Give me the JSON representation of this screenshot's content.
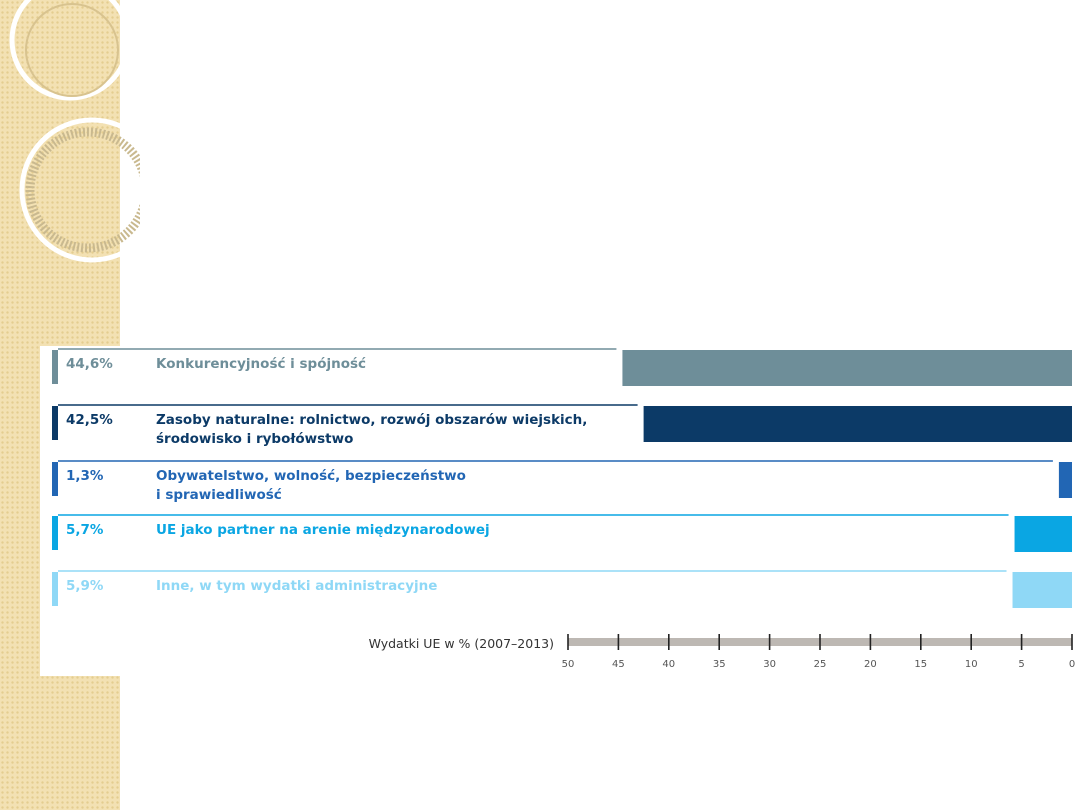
{
  "chart_data": {
    "type": "bar",
    "orientation": "horizontal",
    "axis_direction": "reversed",
    "categories": [
      [
        "Konkurencyjność i spójność"
      ],
      [
        "Zasoby naturalne: rolnictwo, rozwój obszarów wiejskich,",
        "środowisko i rybołówstwo"
      ],
      [
        "Obywatelstwo, wolność, bezpieczeństwo",
        "i sprawiedliwość"
      ],
      [
        "UE jako partner na arenie międzynarodowej"
      ],
      [
        "Inne, w tym wydatki administracyjne"
      ]
    ],
    "value_labels": [
      "44,6%",
      "42,5%",
      "1,3%",
      "5,7%",
      "5,9%"
    ],
    "values": [
      44.6,
      42.5,
      1.3,
      5.7,
      5.9
    ],
    "colors": [
      "#6e8e99",
      "#0c3a67",
      "#2266b4",
      "#0aa6e3",
      "#8fd8f6"
    ],
    "text_colors": [
      "#6e8e99",
      "#0c3a67",
      "#2266b4",
      "#0aa6e3",
      "#8fd8f6"
    ],
    "xlabel": "Wydatki UE w % (2007–2013)",
    "ticks": [
      50,
      45,
      40,
      35,
      30,
      25,
      20,
      15,
      10,
      5,
      0
    ],
    "xlim": [
      50,
      0
    ],
    "legend": "none",
    "grid": false
  },
  "decoration": {
    "strip_color": "#f3e1b3",
    "ring_color": "#ffffff",
    "pattern_color": "#c9b98f"
  }
}
